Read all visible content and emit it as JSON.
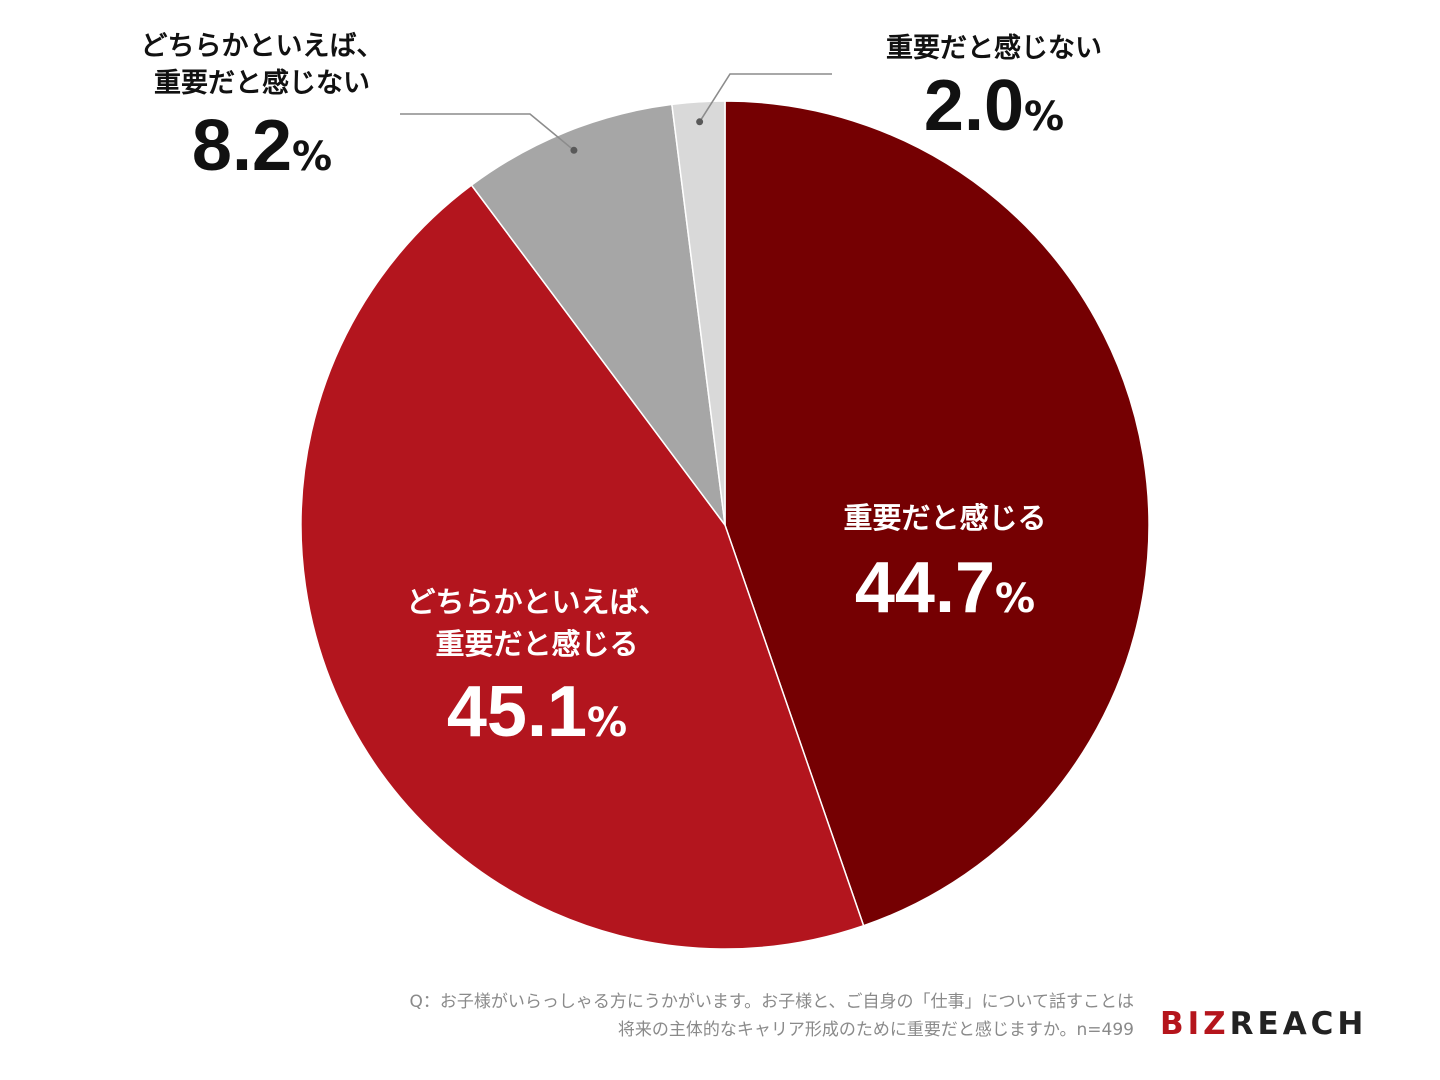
{
  "chart_data": {
    "type": "pie",
    "start": "12 o'clock, clockwise",
    "slices": [
      {
        "label": [
          "重要だと感じる"
        ],
        "value": 44.7,
        "display": "44.7",
        "color": "#750002",
        "label_placement": "inside"
      },
      {
        "label": [
          "どちらかといえば、",
          "重要だと感じる"
        ],
        "value": 45.1,
        "display": "45.1",
        "color": "#b3151e",
        "label_placement": "inside"
      },
      {
        "label": [
          "どちらかといえば、",
          "重要だと感じない"
        ],
        "value": 8.2,
        "display": "8.2",
        "color": "#a6a6a6",
        "label_placement": "outside-left"
      },
      {
        "label": [
          "重要だと感じない"
        ],
        "value": 2.0,
        "display": "2.0",
        "color": "#d9d9d9",
        "label_placement": "outside-right"
      }
    ],
    "unit": "%"
  },
  "footnote": {
    "line1": "Q：お子様がいらっしゃる方にうかがいます。お子様と、ご自身の「仕事」について話すことは",
    "line2": "将来の主体的なキャリア形成のために重要だと感じますか。n=499"
  },
  "logo": {
    "part1": "BIZ",
    "part2": "REACH"
  }
}
